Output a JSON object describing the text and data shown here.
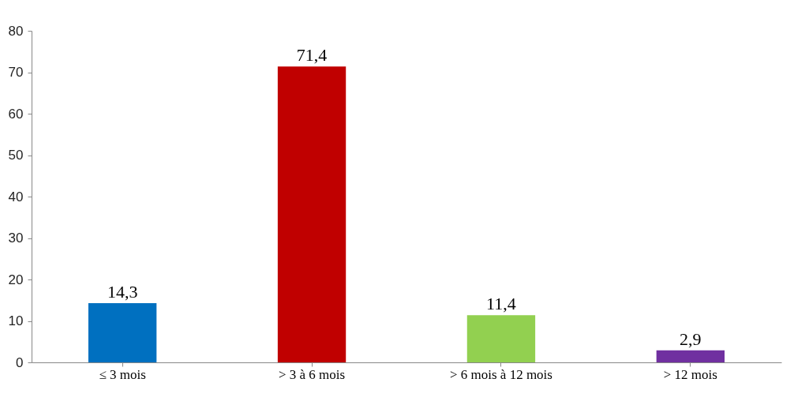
{
  "chart_data": {
    "type": "bar",
    "categories": [
      "≤ 3 mois",
      "> 3 à 6 mois",
      "> 6 mois à 12 mois",
      "> 12 mois"
    ],
    "values": [
      14.3,
      71.4,
      11.4,
      2.9
    ],
    "colors": [
      "#0070c0",
      "#c00000",
      "#92d050",
      "#7030a0"
    ],
    "value_labels": [
      "14,3",
      "71,4",
      "11,4",
      "2,9"
    ],
    "ylim": [
      0,
      80
    ],
    "yticks": [
      0,
      10,
      20,
      30,
      40,
      50,
      60,
      70,
      80
    ],
    "grid": false
  }
}
